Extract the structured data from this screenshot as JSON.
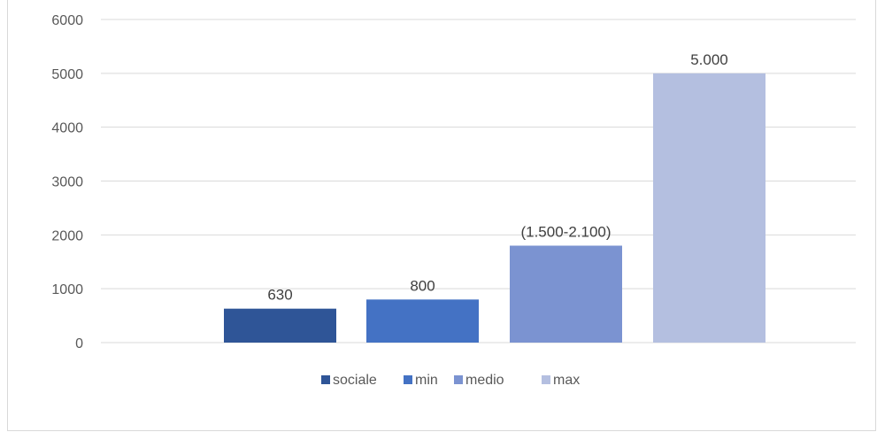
{
  "chart_data": {
    "type": "bar",
    "title": "",
    "xlabel": "",
    "ylabel": "",
    "ylim": [
      0,
      6000
    ],
    "yticks": [
      0,
      1000,
      2000,
      3000,
      4000,
      5000,
      6000
    ],
    "grid": true,
    "legend_position": "bottom",
    "series": [
      {
        "name": "sociale",
        "value": 630,
        "label": "630",
        "color": "#2f5597"
      },
      {
        "name": "min",
        "value": 800,
        "label": "800",
        "color": "#4472c4"
      },
      {
        "name": "medio",
        "value": 1800,
        "label": "(1.500-2.100)",
        "color": "#7b93d1"
      },
      {
        "name": "max",
        "value": 5000,
        "label": "5.000",
        "color": "#b4bfe0"
      }
    ]
  }
}
